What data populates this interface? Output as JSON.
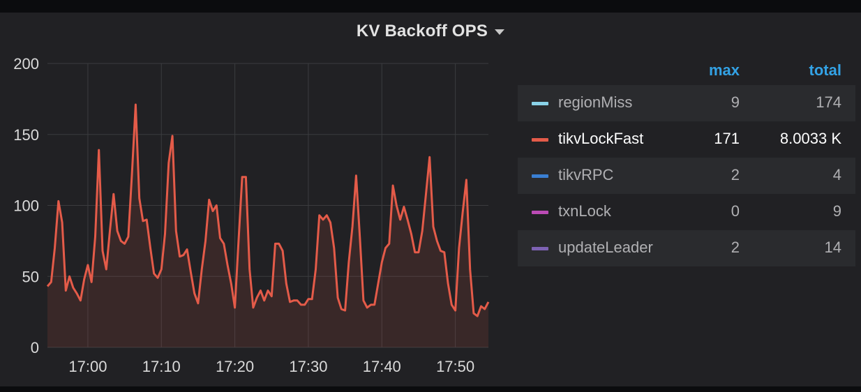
{
  "panel": {
    "title": "KV Backoff OPS",
    "menu_icon": "caret-down-icon"
  },
  "legend": {
    "headers": {
      "max": "max",
      "total": "total"
    },
    "rows": [
      {
        "name": "regionMiss",
        "color": "#8ad2e8",
        "max": "9",
        "total": "174"
      },
      {
        "name": "tikvLockFast",
        "color": "#e45b49",
        "max": "171",
        "total": "8.0033 K"
      },
      {
        "name": "tikvRPC",
        "color": "#3a7fd3",
        "max": "2",
        "total": "4"
      },
      {
        "name": "txnLock",
        "color": "#bb4bb5",
        "max": "0",
        "total": "9"
      },
      {
        "name": "updateLeader",
        "color": "#7d62b3",
        "max": "2",
        "total": "14"
      }
    ]
  },
  "chart_data": {
    "type": "area",
    "y_ticks": [
      "0",
      "50",
      "100",
      "150",
      "200"
    ],
    "ylim": [
      0,
      200
    ],
    "x_ticks": [
      {
        "label": "17:00",
        "minute": 0
      },
      {
        "label": "17:10",
        "minute": 10
      },
      {
        "label": "17:20",
        "minute": 20
      },
      {
        "label": "17:30",
        "minute": 30
      },
      {
        "label": "17:40",
        "minute": 40
      },
      {
        "label": "17:50",
        "minute": 50
      }
    ],
    "xlim": [
      -5.5,
      54.5
    ],
    "grid": true,
    "series": [
      {
        "name": "tikvLockFast",
        "color": "#e45b49",
        "x": [
          -5.5,
          -5,
          -4.5,
          -4,
          -3.5,
          -3,
          -2.5,
          -2,
          -1.5,
          -1,
          -0.5,
          0,
          0.5,
          1,
          1.5,
          2,
          2.5,
          3,
          3.5,
          4,
          4.5,
          5,
          5.5,
          6,
          6.5,
          7,
          7.5,
          8,
          8.5,
          9,
          9.5,
          10,
          10.5,
          11,
          11.5,
          12,
          12.5,
          13,
          13.5,
          14,
          14.5,
          15,
          15.5,
          16,
          16.5,
          17,
          17.5,
          18,
          18.5,
          19,
          19.5,
          20,
          20.5,
          21,
          21.5,
          22,
          22.5,
          23,
          23.5,
          24,
          24.5,
          25,
          25.5,
          26,
          26.5,
          27,
          27.5,
          28,
          28.5,
          29,
          29.5,
          30,
          30.5,
          31,
          31.5,
          32,
          32.5,
          33,
          33.5,
          34,
          34.5,
          35,
          35.5,
          36,
          36.5,
          37,
          37.5,
          38,
          38.5,
          39,
          39.5,
          40,
          40.5,
          41,
          41.5,
          42,
          42.5,
          43,
          43.5,
          44,
          44.5,
          45,
          45.5,
          46,
          46.5,
          47,
          47.5,
          48,
          48.5,
          49,
          49.5,
          50,
          50.5,
          51,
          51.5,
          52,
          52.5,
          53,
          53.5,
          54,
          54.5
        ],
        "values": [
          43,
          46,
          70,
          103,
          88,
          40,
          50,
          42,
          38,
          33,
          48,
          58,
          46,
          78,
          139,
          68,
          55,
          82,
          108,
          82,
          75,
          73,
          78,
          122,
          171,
          105,
          89,
          90,
          70,
          52,
          49,
          55,
          80,
          130,
          149,
          82,
          64,
          65,
          69,
          53,
          38,
          31,
          55,
          75,
          104,
          96,
          100,
          77,
          73,
          58,
          45,
          28,
          75,
          120,
          120,
          55,
          28,
          35,
          40,
          33,
          40,
          36,
          73,
          73,
          68,
          45,
          32,
          33,
          33,
          30,
          30,
          34,
          34,
          55,
          93,
          90,
          93,
          88,
          70,
          35,
          27,
          26,
          60,
          85,
          121,
          78,
          33,
          28,
          30,
          30,
          45,
          60,
          70,
          73,
          114,
          100,
          90,
          99,
          90,
          80,
          67,
          67,
          82,
          108,
          134,
          85,
          75,
          68,
          67,
          45,
          30,
          26,
          70,
          95,
          118,
          55,
          24,
          22,
          29,
          27,
          32
        ]
      }
    ]
  }
}
